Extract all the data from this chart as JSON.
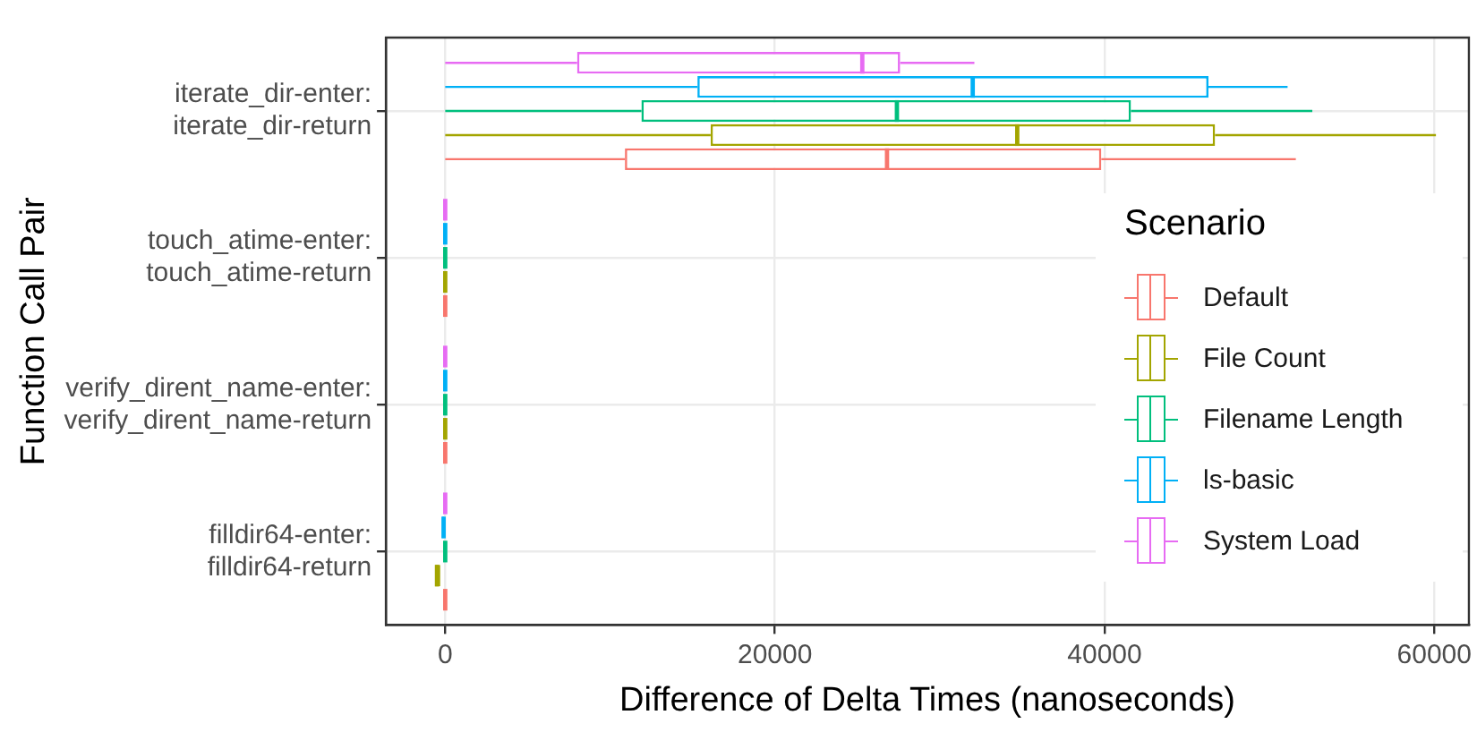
{
  "chart_data": {
    "type": "box",
    "orientation": "horizontal",
    "xlabel": "Difference of Delta Times (nanoseconds)",
    "ylabel": "Function Call Pair",
    "legend_title": "Scenario",
    "legend": "right",
    "grid": true,
    "categories": [
      "iterate_dir-enter:\niterate_dir-return",
      "touch_atime-enter:\ntouch_atime-return",
      "verify_dirent_name-enter:\nverify_dirent_name-return",
      "filldir64-enter:\nfilldir64-return"
    ],
    "xlim": [
      -3600,
      62100
    ],
    "xticks": [
      0,
      20000,
      40000,
      60000
    ],
    "series": [
      {
        "name": "Default",
        "color": "#f8766d",
        "boxes": [
          {
            "low": 0,
            "q1": 10900,
            "median": 26800,
            "q3": 39800,
            "high": 51600
          },
          {
            "low": 0,
            "q1": 0,
            "median": 0,
            "q3": 0,
            "high": 0
          },
          {
            "low": 0,
            "q1": 0,
            "median": 0,
            "q3": 0,
            "high": 0
          },
          {
            "low": 0,
            "q1": 0,
            "median": 0,
            "q3": 0,
            "high": 0
          }
        ]
      },
      {
        "name": "File Count",
        "color": "#a3a500",
        "boxes": [
          {
            "low": 0,
            "q1": 16100,
            "median": 34700,
            "q3": 46700,
            "high": 60100
          },
          {
            "low": 0,
            "q1": 0,
            "median": 0,
            "q3": 0,
            "high": 0
          },
          {
            "low": 0,
            "q1": 0,
            "median": 0,
            "q3": 0,
            "high": 0
          },
          {
            "low": -600,
            "q1": -600,
            "median": -500,
            "q3": -300,
            "high": -300
          }
        ]
      },
      {
        "name": "Filename Length",
        "color": "#00bf7d",
        "boxes": [
          {
            "low": 0,
            "q1": 11900,
            "median": 27400,
            "q3": 41600,
            "high": 52600
          },
          {
            "low": 0,
            "q1": 0,
            "median": 0,
            "q3": 0,
            "high": 0
          },
          {
            "low": 0,
            "q1": 0,
            "median": 0,
            "q3": 0,
            "high": 0
          },
          {
            "low": 0,
            "q1": 0,
            "median": 0,
            "q3": 0,
            "high": 0
          }
        ]
      },
      {
        "name": "ls-basic",
        "color": "#00b0f6",
        "boxes": [
          {
            "low": 0,
            "q1": 15300,
            "median": 32000,
            "q3": 46300,
            "high": 51100
          },
          {
            "low": 0,
            "q1": 0,
            "median": 0,
            "q3": 0,
            "high": 0
          },
          {
            "low": 0,
            "q1": 0,
            "median": 0,
            "q3": 0,
            "high": 0
          },
          {
            "low": -200,
            "q1": -200,
            "median": -100,
            "q3": 0,
            "high": 0
          }
        ]
      },
      {
        "name": "System Load",
        "color": "#e76bf3",
        "boxes": [
          {
            "low": 0,
            "q1": 8000,
            "median": 25300,
            "q3": 27600,
            "high": 32100
          },
          {
            "low": 0,
            "q1": 0,
            "median": 0,
            "q3": 0,
            "high": 0
          },
          {
            "low": 0,
            "q1": 0,
            "median": 0,
            "q3": 0,
            "high": 0
          },
          {
            "low": 0,
            "q1": 0,
            "median": 0,
            "q3": 0,
            "high": 0
          }
        ]
      }
    ]
  }
}
